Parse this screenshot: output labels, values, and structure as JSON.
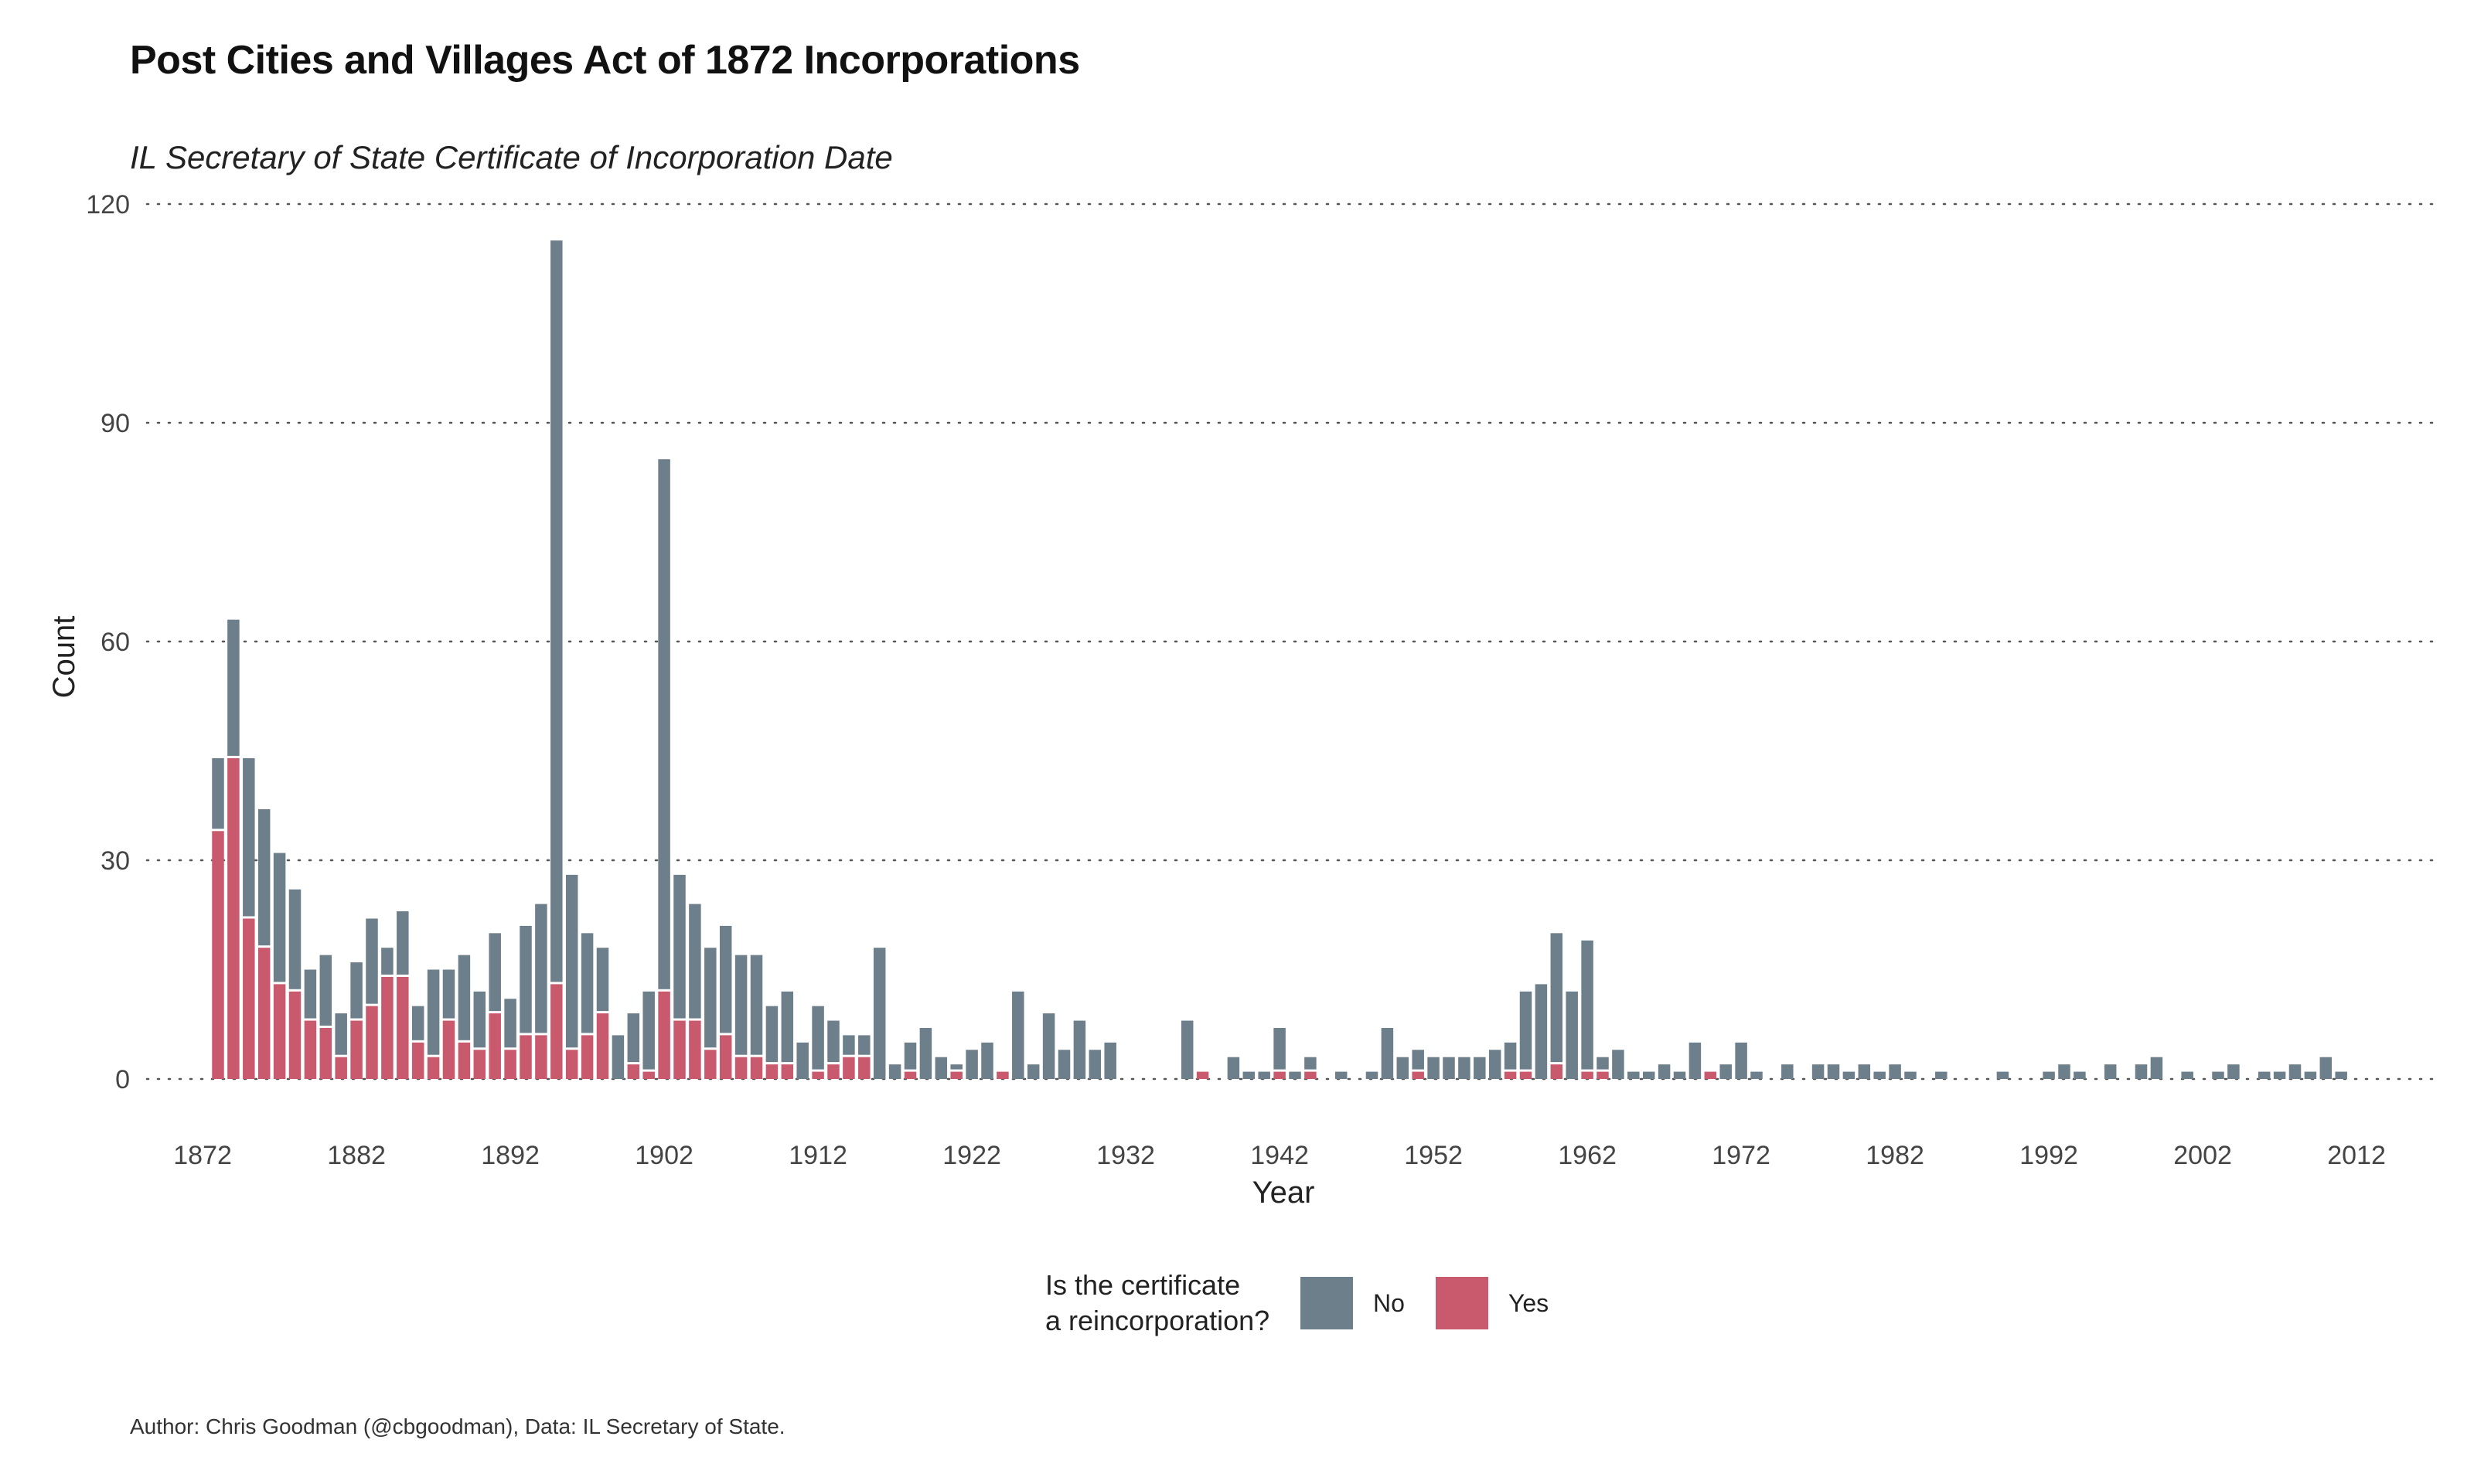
{
  "title": "Post Cities and Villages Act of 1872 Incorporations",
  "subtitle": "IL Secretary of State Certificate of Incorporation Date",
  "caption": "Author: Chris Goodman (@cbgoodman), Data: IL Secretary of State.",
  "legend": {
    "title_line1": "Is the certificate",
    "title_line2": "a reincorporation?",
    "items": [
      {
        "label": "No",
        "color": "#6e7f8c"
      },
      {
        "label": "Yes",
        "color": "#c95a6e"
      }
    ]
  },
  "chart_data": {
    "type": "bar",
    "stacked": true,
    "xlabel": "Year",
    "ylabel": "Count",
    "xlim": [
      1870,
      2014
    ],
    "ylim": [
      0,
      120
    ],
    "x_ticks": [
      1872,
      1882,
      1892,
      1902,
      1912,
      1922,
      1932,
      1942,
      1952,
      1962,
      1972,
      1982,
      1992,
      2002,
      2012
    ],
    "y_ticks": [
      0,
      30,
      60,
      90,
      120
    ],
    "grid": "horizontal-dotted",
    "legend_position": "bottom",
    "x": [
      1873,
      1874,
      1875,
      1876,
      1877,
      1878,
      1879,
      1880,
      1881,
      1882,
      1883,
      1884,
      1885,
      1886,
      1887,
      1888,
      1889,
      1890,
      1891,
      1892,
      1893,
      1894,
      1895,
      1896,
      1897,
      1898,
      1899,
      1900,
      1901,
      1902,
      1903,
      1904,
      1905,
      1906,
      1907,
      1908,
      1909,
      1910,
      1911,
      1912,
      1913,
      1914,
      1915,
      1916,
      1917,
      1918,
      1919,
      1920,
      1921,
      1922,
      1923,
      1924,
      1925,
      1926,
      1927,
      1928,
      1929,
      1930,
      1931,
      1932,
      1933,
      1934,
      1935,
      1936,
      1937,
      1938,
      1939,
      1940,
      1941,
      1942,
      1943,
      1944,
      1945,
      1946,
      1947,
      1948,
      1949,
      1950,
      1951,
      1952,
      1953,
      1954,
      1955,
      1956,
      1957,
      1958,
      1959,
      1960,
      1961,
      1962,
      1963,
      1964,
      1965,
      1966,
      1967,
      1968,
      1969,
      1970,
      1971,
      1972,
      1973,
      1974,
      1975,
      1976,
      1977,
      1978,
      1979,
      1980,
      1981,
      1982,
      1983,
      1984,
      1985,
      1986,
      1987,
      1988,
      1989,
      1990,
      1991,
      1992,
      1993,
      1994,
      1995,
      1996,
      1997,
      1998,
      1999,
      2000,
      2001,
      2002,
      2003,
      2004,
      2005,
      2006,
      2007,
      2008,
      2009,
      2010,
      2011
    ],
    "series": [
      {
        "name": "Yes",
        "values": [
          34,
          44,
          22,
          18,
          13,
          12,
          8,
          7,
          3,
          8,
          10,
          14,
          14,
          5,
          3,
          8,
          5,
          4,
          9,
          4,
          6,
          6,
          13,
          4,
          6,
          9,
          0,
          2,
          1,
          12,
          8,
          8,
          4,
          6,
          3,
          3,
          2,
          2,
          0,
          1,
          2,
          3,
          3,
          0,
          0,
          1,
          0,
          0,
          1,
          0,
          0,
          1,
          0,
          0,
          0,
          0,
          0,
          0,
          0,
          0,
          0,
          0,
          0,
          0,
          1,
          0,
          0,
          0,
          0,
          1,
          0,
          1,
          0,
          0,
          0,
          0,
          0,
          0,
          1,
          0,
          0,
          0,
          0,
          0,
          1,
          1,
          0,
          2,
          0,
          1,
          1,
          0,
          0,
          0,
          0,
          0,
          0,
          1,
          0,
          0,
          0,
          0,
          0,
          0,
          0,
          0,
          0,
          0,
          0,
          0,
          0,
          0,
          0,
          0,
          0,
          0,
          0,
          0,
          0,
          0,
          0,
          0,
          0,
          0,
          0,
          0,
          0,
          0,
          0,
          0,
          0,
          0,
          0,
          0,
          0,
          0,
          0,
          0,
          0
        ]
      },
      {
        "name": "No",
        "values": [
          10,
          19,
          22,
          19,
          18,
          14,
          7,
          10,
          6,
          8,
          12,
          4,
          9,
          5,
          12,
          7,
          12,
          8,
          11,
          7,
          15,
          18,
          102,
          24,
          14,
          9,
          6,
          7,
          11,
          73,
          20,
          16,
          14,
          15,
          14,
          14,
          8,
          10,
          5,
          9,
          6,
          3,
          3,
          18,
          2,
          4,
          7,
          3,
          1,
          4,
          5,
          0,
          12,
          2,
          9,
          4,
          8,
          4,
          5,
          0,
          0,
          0,
          0,
          8,
          0,
          0,
          3,
          1,
          1,
          6,
          1,
          2,
          0,
          1,
          0,
          1,
          7,
          3,
          3,
          3,
          3,
          3,
          3,
          4,
          4,
          11,
          13,
          18,
          12,
          18,
          2,
          4,
          1,
          1,
          2,
          1,
          5,
          0,
          2,
          5,
          1,
          0,
          2,
          0,
          2,
          2,
          1,
          2,
          1,
          2,
          1,
          0,
          1,
          0,
          0,
          0,
          1,
          0,
          0,
          1,
          2,
          1,
          0,
          2,
          0,
          2,
          3,
          0,
          1,
          0,
          1,
          2,
          0,
          1,
          1,
          2,
          1,
          3,
          1
        ]
      }
    ]
  }
}
